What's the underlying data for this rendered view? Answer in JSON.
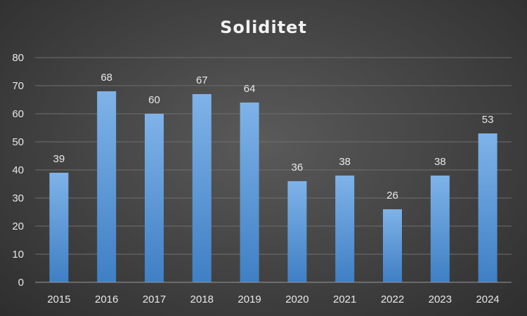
{
  "chart_data": {
    "type": "bar",
    "title": "Soliditet",
    "xlabel": "",
    "ylabel": "",
    "categories": [
      "2015",
      "2016",
      "2017",
      "2018",
      "2019",
      "2020",
      "2021",
      "2022",
      "2023",
      "2024"
    ],
    "values": [
      39,
      68,
      60,
      67,
      64,
      36,
      38,
      26,
      38,
      53
    ],
    "data_labels": [
      "39",
      "68",
      "60",
      "67",
      "64",
      "36",
      "38",
      "26",
      "38",
      "53"
    ],
    "ylim": [
      0,
      80
    ],
    "yticks": [
      0,
      10,
      20,
      30,
      40,
      50,
      60,
      70,
      80
    ],
    "grid": true,
    "legend": "none",
    "bar_color_top": "#7fb3e8",
    "bar_color_bottom": "#3f7fc4",
    "background_color": "#404040"
  }
}
